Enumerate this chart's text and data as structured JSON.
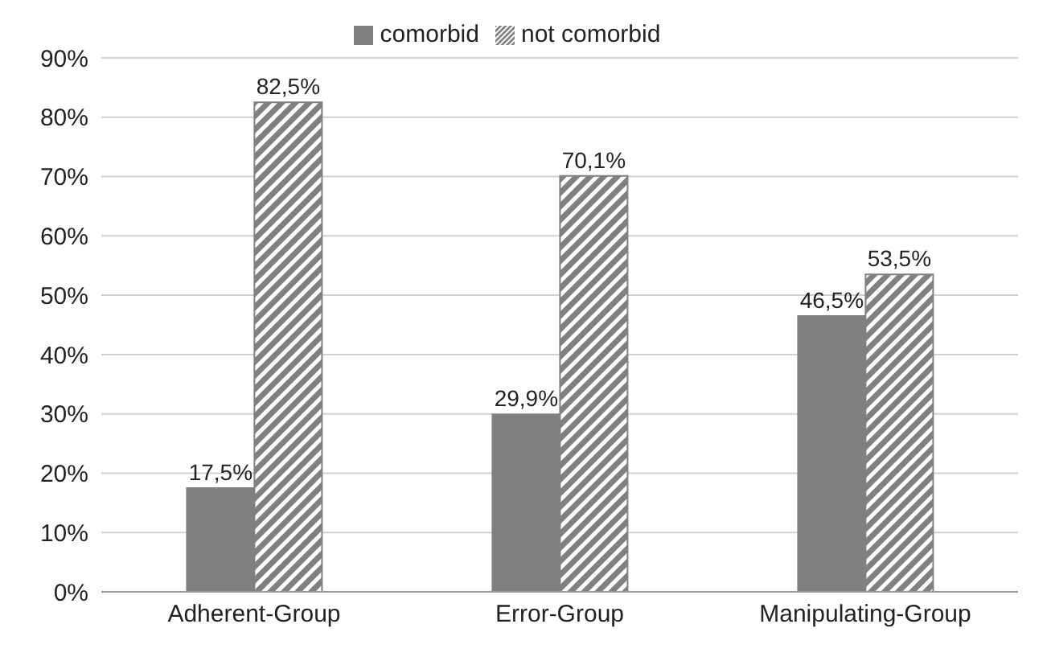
{
  "chart_data": {
    "type": "bar",
    "categories": [
      "Adherent-Group",
      "Error-Group",
      "Manipulating-Group"
    ],
    "series": [
      {
        "name": "comorbid",
        "color": "#808080",
        "values": [
          17.5,
          29.9,
          46.5
        ],
        "value_labels": [
          "17,5%",
          "29,9%",
          "46,5%"
        ]
      },
      {
        "name": "not comorbid",
        "color": "#808080",
        "values": [
          82.5,
          70.1,
          53.5
        ],
        "value_labels": [
          "82,5%",
          "70,1%",
          "53,5%"
        ]
      }
    ],
    "ylim": [
      0,
      90
    ],
    "yticks": [
      {
        "value": 0,
        "label": "0%"
      },
      {
        "value": 10,
        "label": "10%"
      },
      {
        "value": 20,
        "label": "20%"
      },
      {
        "value": 30,
        "label": "30%"
      },
      {
        "value": 40,
        "label": "40%"
      },
      {
        "value": 50,
        "label": "50%"
      },
      {
        "value": 60,
        "label": "60%"
      },
      {
        "value": 70,
        "label": "70%"
      },
      {
        "value": 80,
        "label": "80%"
      },
      {
        "value": 90,
        "label": "90%"
      }
    ],
    "grid": "y",
    "legend": "top"
  }
}
